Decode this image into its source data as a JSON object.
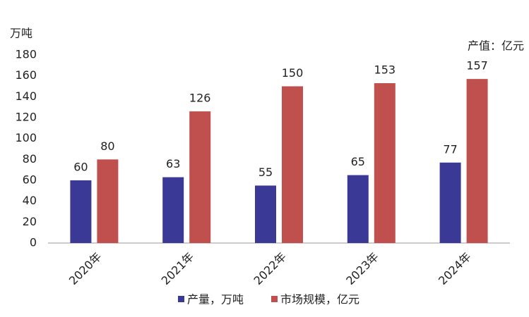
{
  "chart_data": {
    "type": "bar",
    "y_label": "万吨",
    "y2_label": "产值：亿元",
    "categories": [
      "2020年",
      "2021年",
      "2022年",
      "2023年",
      "2024年"
    ],
    "series": [
      {
        "name": "产量，万吨",
        "color": "#3a3a96",
        "values": [
          60,
          63,
          55,
          65,
          77
        ]
      },
      {
        "name": "市场规模，亿元",
        "color": "#c0504d",
        "values": [
          80,
          126,
          150,
          153,
          157
        ]
      }
    ],
    "ylim": [
      0,
      180
    ],
    "yticks": [
      0,
      20,
      40,
      60,
      80,
      100,
      120,
      140,
      160,
      180
    ],
    "grid": false,
    "legend": "bottom"
  }
}
